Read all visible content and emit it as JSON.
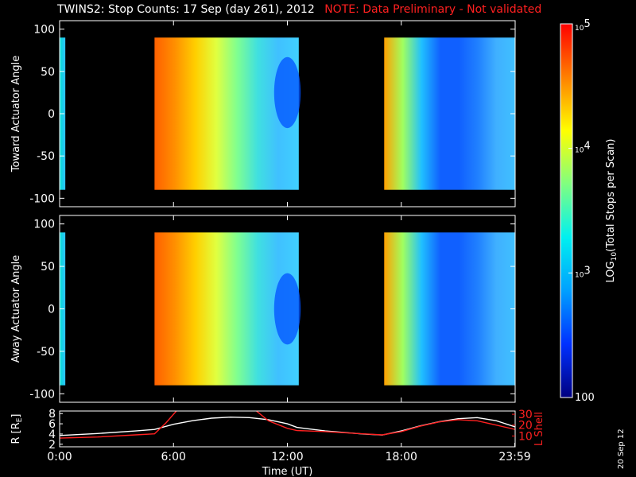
{
  "title": "TWINS2: Stop Counts: 17 Sep (day 261), 2012",
  "note": "NOTE: Data Preliminary - Not validated",
  "stamp": "20 Sep 12",
  "colorbar": {
    "label": "LOG10(Total Stops per Scan)",
    "label_main": "LOG",
    "label_sub": "10",
    "label_rest": "(Total Stops per Scan)",
    "ticks": [
      {
        "base": "10",
        "exp": "5",
        "value": 100000
      },
      {
        "base": "10",
        "exp": "4",
        "value": 10000
      },
      {
        "base": "10",
        "exp": "3",
        "value": 1000
      },
      {
        "base": "100",
        "exp": "",
        "value": 100
      }
    ],
    "scale": "log",
    "range": [
      100,
      100000
    ],
    "colormap": [
      "#000080",
      "#0030ff",
      "#00a0ff",
      "#00f0f0",
      "#80ff80",
      "#ffff00",
      "#ff8000",
      "#ff0000"
    ]
  },
  "chart_data": [
    {
      "type": "heatmap",
      "ylabel": "Toward Actuator Angle",
      "ylim": [
        -110,
        110
      ],
      "yticks": [
        "100",
        "50",
        "0",
        "-50",
        "-100"
      ],
      "xlim": [
        0,
        24
      ],
      "blocks": [
        {
          "x0": 0.0,
          "x1": 0.3,
          "y0": -90,
          "y1": 90
        },
        {
          "x0": 5.0,
          "x1": 12.6,
          "y0": -90,
          "y1": 90
        },
        {
          "x0": 17.1,
          "x1": 24.0,
          "y0": -90,
          "y1": 90
        }
      ]
    },
    {
      "type": "heatmap",
      "ylabel": "Away Actuator Angle",
      "ylim": [
        -110,
        110
      ],
      "yticks": [
        "100",
        "50",
        "0",
        "-50",
        "-100"
      ],
      "xlim": [
        0,
        24
      ],
      "blocks": [
        {
          "x0": 0.0,
          "x1": 0.3,
          "y0": -90,
          "y1": 90
        },
        {
          "x0": 5.0,
          "x1": 12.6,
          "y0": -90,
          "y1": 90
        },
        {
          "x0": 17.1,
          "x1": 24.0,
          "y0": -90,
          "y1": 90
        }
      ]
    },
    {
      "type": "line",
      "xlabel": "Time (UT)",
      "xticks": [
        "0:00",
        "6:00",
        "12:00",
        "18:00",
        "23:59"
      ],
      "xtick_values": [
        0,
        6,
        12,
        18,
        23.98
      ],
      "ylabel_left": "R [RE]",
      "ylabel_left_main": "R [R",
      "ylabel_left_sub": "E",
      "ylabel_left_end": "]",
      "yticks_left": [
        "8",
        "6",
        "4",
        "2"
      ],
      "ylim_left": [
        1.5,
        8.5
      ],
      "ylabel_right": "L Shell",
      "yticks_right": [
        "30",
        "20",
        "10"
      ],
      "ylim_right": [
        0,
        33
      ],
      "series": [
        {
          "axis": "left",
          "color": "#ffffff",
          "x": [
            0,
            2,
            4,
            5,
            6,
            7,
            8,
            9,
            10,
            11,
            12,
            12.5,
            14,
            16,
            17,
            18,
            19,
            20,
            21,
            22,
            23,
            24
          ],
          "y": [
            3.7,
            4.1,
            4.6,
            4.9,
            5.9,
            6.6,
            7.1,
            7.3,
            7.2,
            6.8,
            6.0,
            5.3,
            4.6,
            4.0,
            3.8,
            4.6,
            5.6,
            6.4,
            7.0,
            7.2,
            6.6,
            5.4
          ]
        },
        {
          "axis": "right",
          "color": "#ff2020",
          "x": [
            0,
            2,
            4,
            5,
            5.6,
            6.2
          ],
          "y": [
            8,
            9,
            11,
            12,
            22,
            34
          ]
        },
        {
          "axis": "right",
          "color": "#ff2020",
          "x": [
            10.3,
            11.0,
            12.0,
            12.5,
            14,
            16,
            17,
            18,
            19,
            20,
            21,
            22,
            23,
            24
          ],
          "y": [
            34,
            24,
            17,
            15,
            14,
            12,
            11,
            14,
            19,
            23,
            25,
            24,
            20,
            16
          ]
        }
      ]
    }
  ]
}
